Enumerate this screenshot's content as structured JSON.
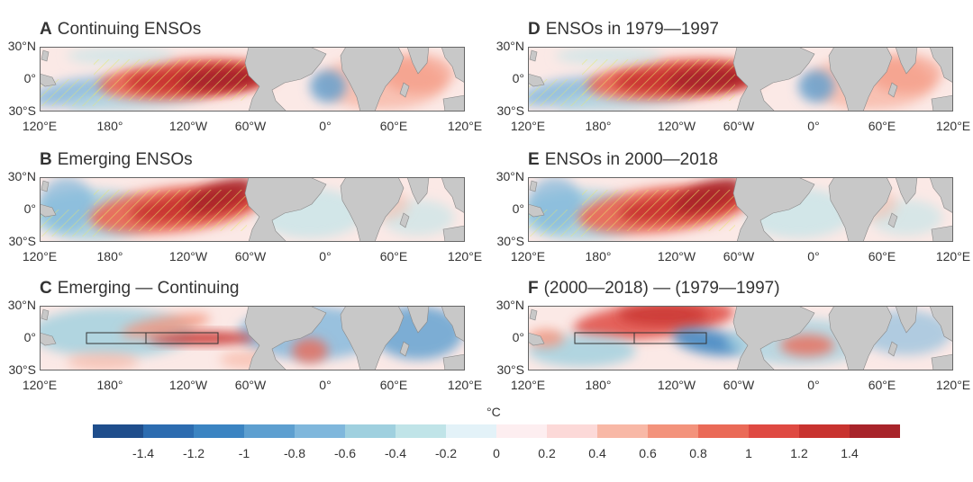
{
  "panels": [
    {
      "id": "A",
      "title": "Continuing ENSOs",
      "col": 0,
      "row": 0,
      "pattern": "strong_east",
      "hatch": true,
      "box": false
    },
    {
      "id": "B",
      "title": "Emerging ENSOs",
      "col": 0,
      "row": 1,
      "pattern": "strong_mid",
      "hatch": true,
      "box": false
    },
    {
      "id": "C",
      "title": "Emerging — Continuing",
      "col": 0,
      "row": 2,
      "pattern": "diff_c",
      "hatch": false,
      "box": true
    },
    {
      "id": "D",
      "title": "ENSOs in 1979—1997",
      "col": 1,
      "row": 0,
      "pattern": "strong_east",
      "hatch": true,
      "box": false
    },
    {
      "id": "E",
      "title": "ENSOs in 2000—2018",
      "col": 1,
      "row": 1,
      "pattern": "strong_mid",
      "hatch": true,
      "box": false
    },
    {
      "id": "F",
      "title": "(2000—2018) — (1979—1997)",
      "col": 1,
      "row": 2,
      "pattern": "diff_f",
      "hatch": false,
      "box": true
    }
  ],
  "lat_labels": [
    "30°N",
    "0°",
    "30°S"
  ],
  "lon_labels": [
    "120°E",
    "180°",
    "120°W",
    "60°W",
    "0°",
    "60°E",
    "120°E"
  ],
  "colorbar": {
    "unit": "°C",
    "colors": [
      "#1f4e8c",
      "#2c6cb0",
      "#3b84c2",
      "#5d9fd0",
      "#7fb7dc",
      "#9fd0df",
      "#c0e4e8",
      "#e3f2f8",
      "#fdeef0",
      "#fcd9d8",
      "#f8b8a6",
      "#f3937c",
      "#ea6a57",
      "#df4a42",
      "#c8332f",
      "#a8242a"
    ],
    "ticks": [
      "-1.4",
      "-1.2",
      "-1",
      "-0.8",
      "-0.6",
      "-0.4",
      "-0.2",
      "0",
      "0.2",
      "0.4",
      "0.6",
      "0.8",
      "1",
      "1.2",
      "1.4"
    ]
  },
  "colors": {
    "land": "#c8c8c8",
    "hatch": "#e6e86a",
    "box": "#333333"
  }
}
